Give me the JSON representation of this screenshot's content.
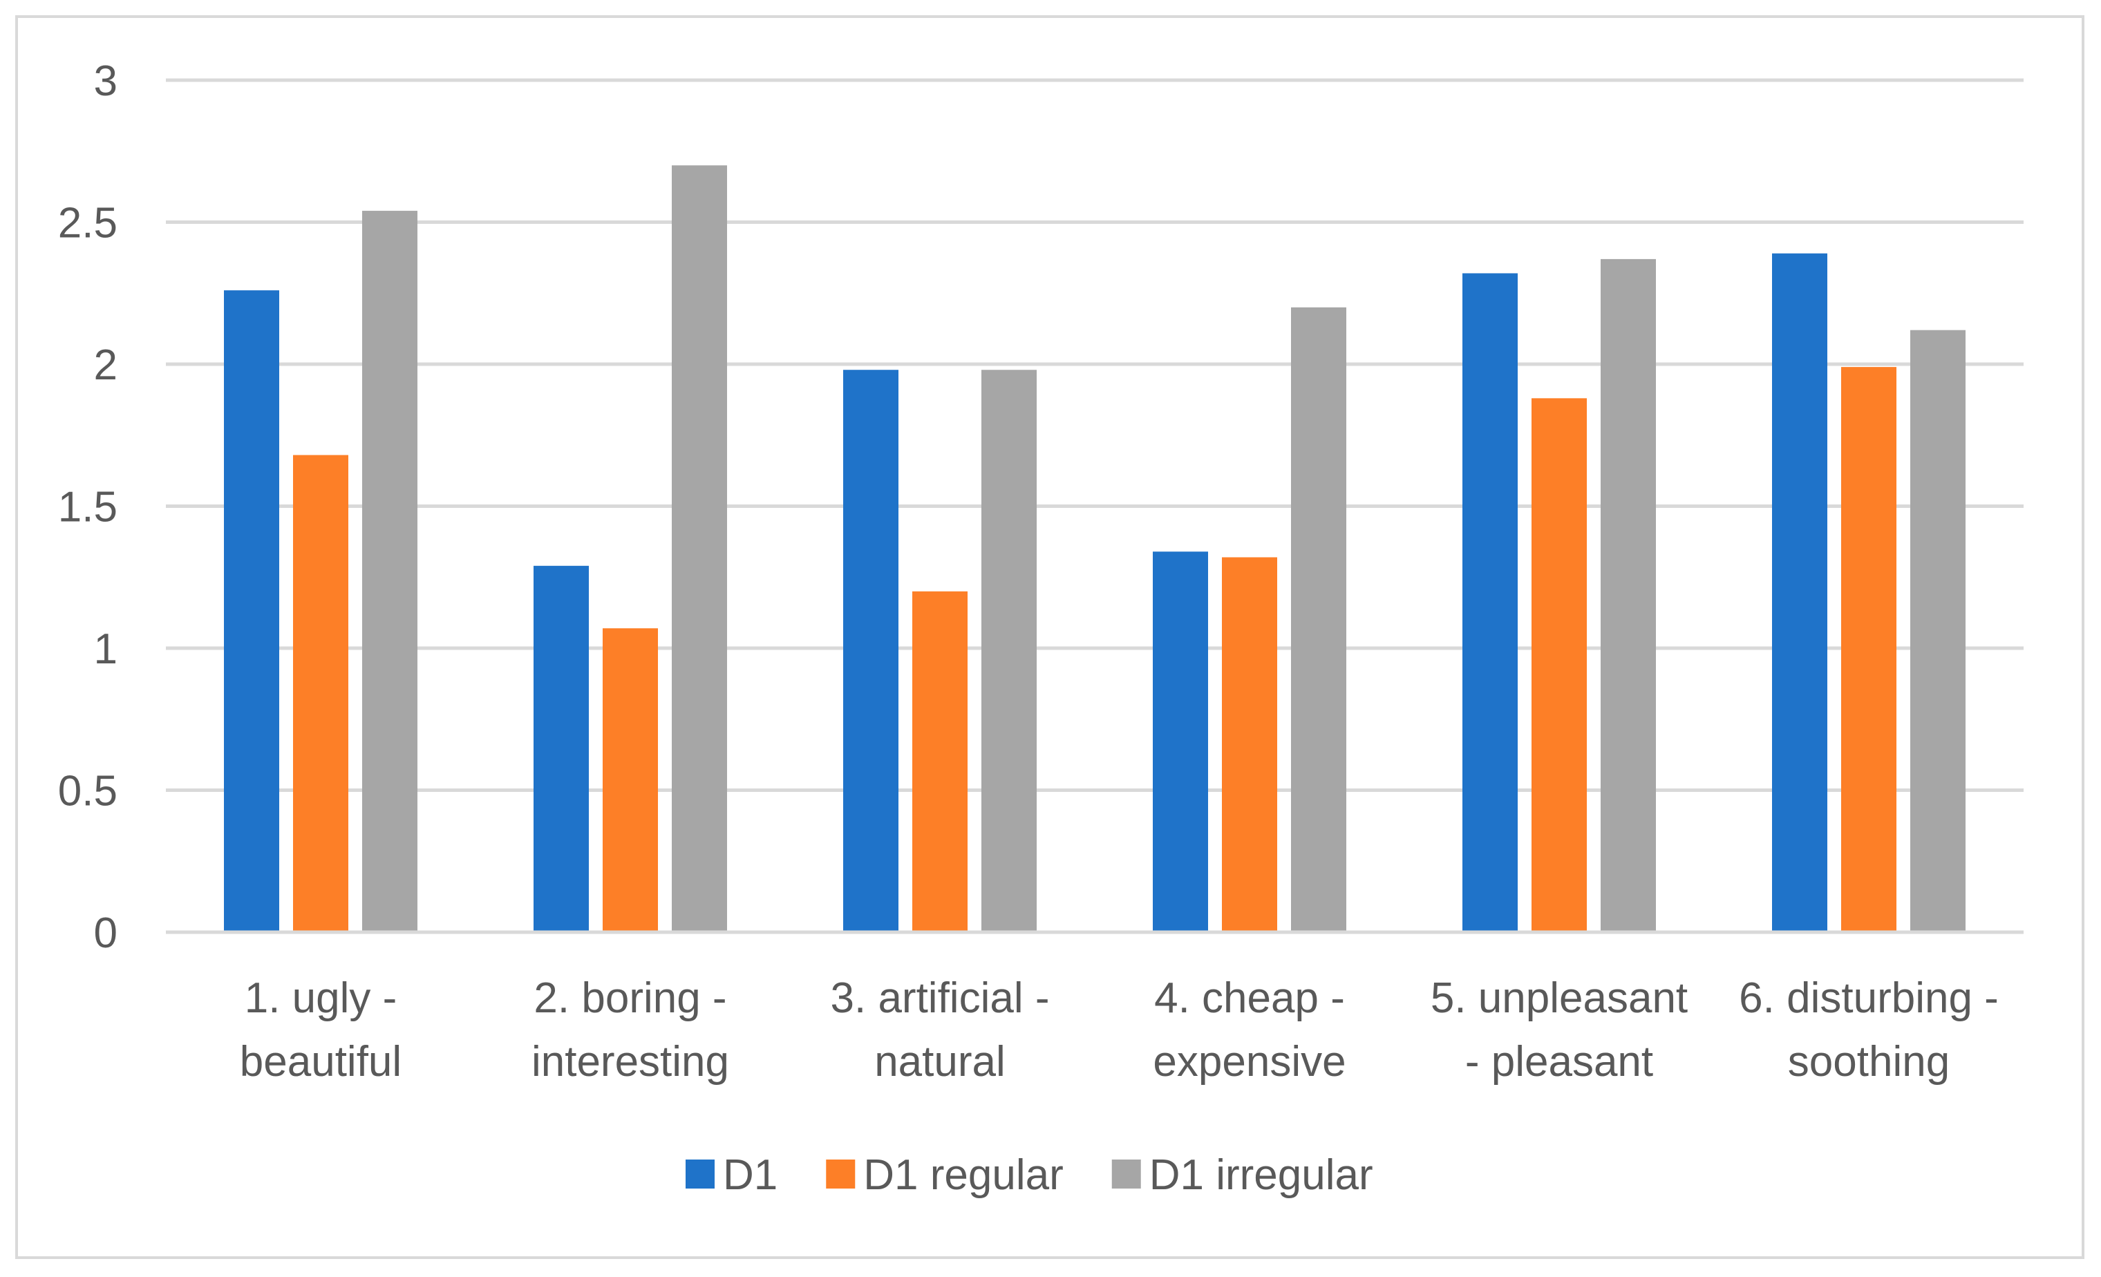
{
  "chart_data": {
    "type": "bar",
    "title": "",
    "xlabel": "",
    "ylabel": "",
    "ylim": [
      0,
      3
    ],
    "yticks": [
      "0",
      "0.5",
      "1",
      "1.5",
      "2",
      "2.5",
      "3"
    ],
    "ytick_values": [
      0,
      0.5,
      1,
      1.5,
      2,
      2.5,
      3
    ],
    "grid": true,
    "legend_position": "bottom",
    "categories": [
      [
        "1. ugly -",
        "beautiful"
      ],
      [
        "2. boring -",
        "interesting"
      ],
      [
        "3. artificial -",
        "natural"
      ],
      [
        "4. cheap -",
        "expensive"
      ],
      [
        "5. unpleasant",
        "- pleasant"
      ],
      [
        "6. disturbing  -",
        "soothing"
      ]
    ],
    "series": [
      {
        "name": "D1",
        "color": "#1f73c9",
        "values": [
          2.26,
          1.29,
          1.98,
          1.34,
          2.32,
          2.39
        ]
      },
      {
        "name": "D1 regular",
        "color": "#fd7f27",
        "values": [
          1.68,
          1.07,
          1.2,
          1.32,
          1.88,
          1.99
        ]
      },
      {
        "name": "D1 irregular",
        "color": "#a6a6a6",
        "values": [
          2.54,
          2.7,
          1.98,
          2.2,
          2.37,
          2.12
        ]
      }
    ],
    "gridline_color": "#d9d9d9",
    "text_color": "#595959"
  }
}
